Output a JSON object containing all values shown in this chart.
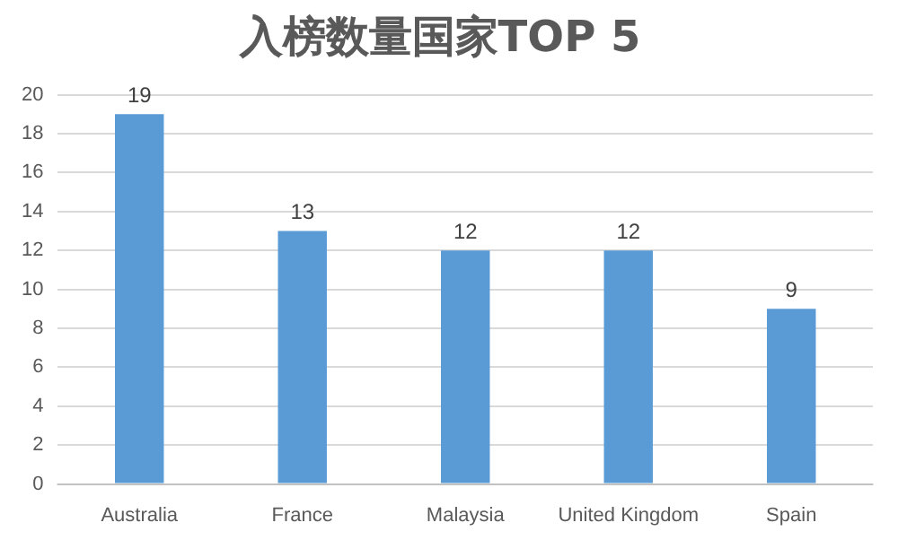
{
  "chart_data": {
    "type": "bar",
    "title": "入榜数量国家TOP 5",
    "categories": [
      "Australia",
      "France",
      "Malaysia",
      "United Kingdom",
      "Spain"
    ],
    "values": [
      19,
      13,
      12,
      12,
      9
    ],
    "color": "#5b9bd5",
    "ylim": [
      0,
      20
    ],
    "yticks": [
      0,
      2,
      4,
      6,
      8,
      10,
      12,
      14,
      16,
      18,
      20
    ],
    "grid": "y",
    "data_labels": true
  }
}
